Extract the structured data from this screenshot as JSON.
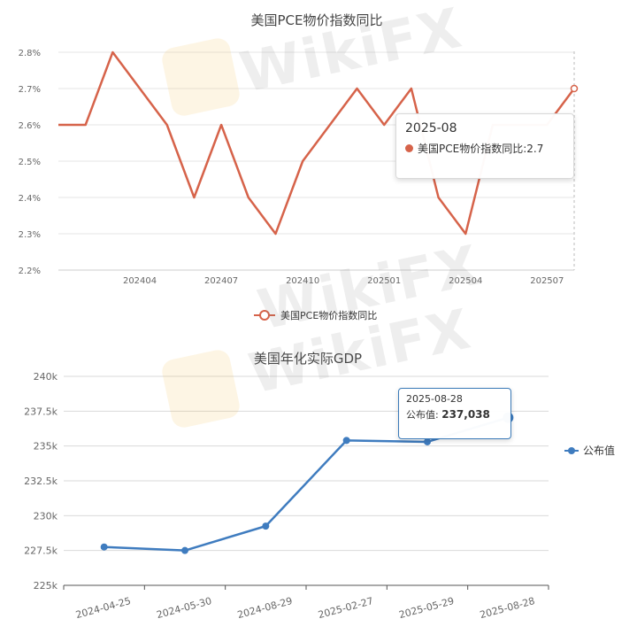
{
  "colors": {
    "pce": "#d6634a",
    "gdp": "#3f7cbf",
    "grid": "#e6e6e6",
    "axis": "#666666"
  },
  "chart_data": [
    {
      "type": "line",
      "title": "美国PCE物价指数同比",
      "categories": [
        "202401",
        "202402",
        "202403",
        "202404",
        "202405",
        "202406",
        "202407",
        "202408",
        "202409",
        "202410",
        "202411",
        "202412",
        "202501",
        "202502",
        "202503",
        "202504",
        "202505",
        "202506",
        "202507",
        "202508"
      ],
      "x_tick_labels": [
        "202404",
        "202407",
        "202410",
        "202501",
        "202504",
        "202507"
      ],
      "y_tick_labels": [
        "2.2%",
        "2.3%",
        "2.4%",
        "2.5%",
        "2.6%",
        "2.7%",
        "2.8%"
      ],
      "series": [
        {
          "name": "美国PCE物价指数同比",
          "values": [
            2.6,
            2.6,
            2.8,
            2.7,
            2.6,
            2.4,
            2.6,
            2.4,
            2.3,
            2.5,
            2.6,
            2.7,
            2.6,
            2.7,
            2.4,
            2.3,
            2.6,
            2.6,
            2.6,
            2.7
          ]
        }
      ],
      "ylim": [
        2.2,
        2.8
      ],
      "grid": true,
      "legend": "bottom-center",
      "tooltip": {
        "date": "2025-08",
        "label": "美国PCE物价指数同比:2.7"
      }
    },
    {
      "type": "line",
      "title": "美国年化实际GDP",
      "categories": [
        "2024-04-25",
        "2024-05-30",
        "2024-08-29",
        "2025-02-27",
        "2025-05-29",
        "2025-08-28"
      ],
      "y_tick_labels": [
        "225k",
        "227.5k",
        "230k",
        "232.5k",
        "235k",
        "237.5k",
        "240k"
      ],
      "series": [
        {
          "name": "公布值",
          "values": [
            227750,
            227500,
            229250,
            235400,
            235300,
            237038
          ]
        }
      ],
      "ylim": [
        225000,
        240000
      ],
      "grid": true,
      "legend": "right",
      "tooltip": {
        "date": "2025-08-28",
        "label": "公布值:",
        "value": "237,038"
      }
    }
  ],
  "watermark": "WikiFX"
}
